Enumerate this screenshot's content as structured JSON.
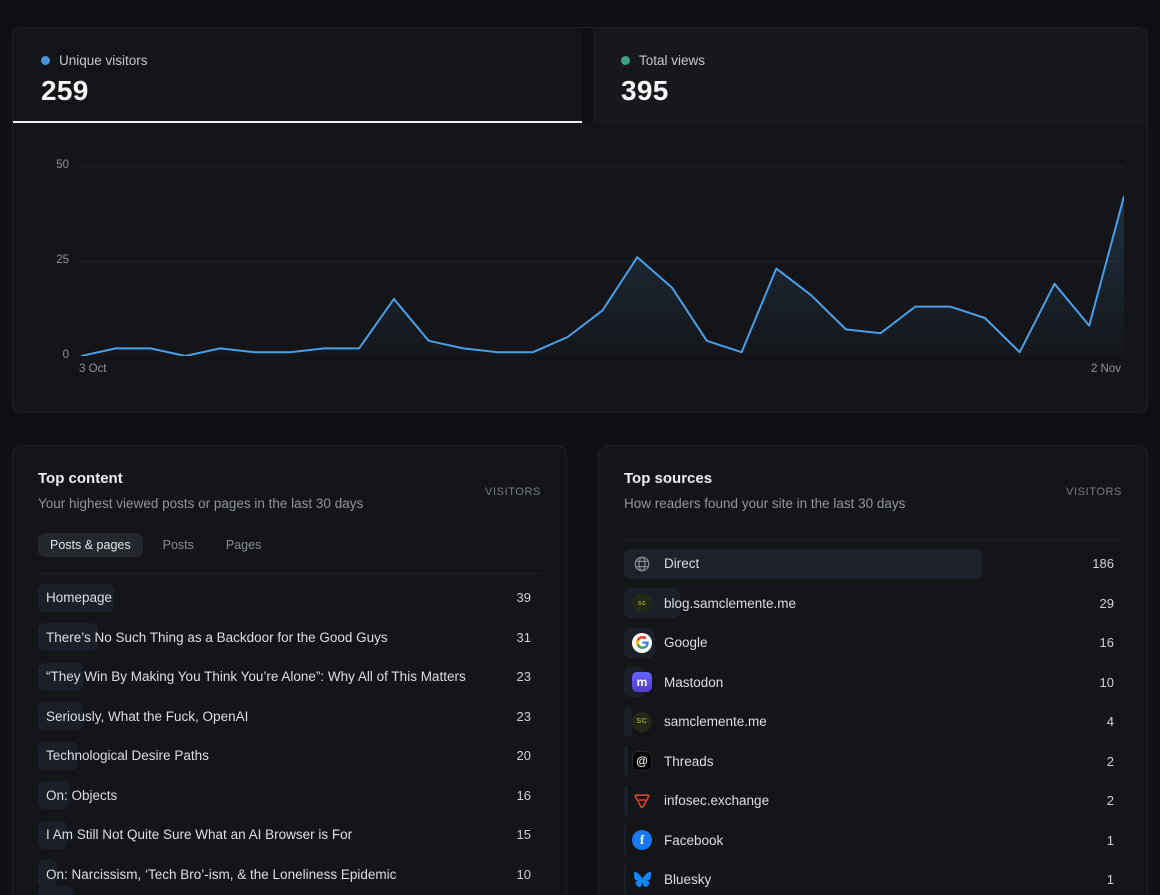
{
  "accent_colors": {
    "unique_dot": "#4a94dd",
    "views_dot": "#3da287",
    "chart_line": "#4b9fe7",
    "bar_fill": "#1a1f29",
    "direct_bar_fill": "#1c212c"
  },
  "kpis": {
    "unique_visitors": {
      "label": "Unique visitors",
      "value": "259",
      "active": true
    },
    "total_views": {
      "label": "Total views",
      "value": "395",
      "active": false
    }
  },
  "chart_data": {
    "type": "area",
    "series_name": "Unique visitors",
    "x": [
      "3 Oct",
      "4 Oct",
      "5 Oct",
      "6 Oct",
      "7 Oct",
      "8 Oct",
      "9 Oct",
      "10 Oct",
      "11 Oct",
      "12 Oct",
      "13 Oct",
      "14 Oct",
      "15 Oct",
      "16 Oct",
      "17 Oct",
      "18 Oct",
      "19 Oct",
      "20 Oct",
      "21 Oct",
      "22 Oct",
      "23 Oct",
      "24 Oct",
      "25 Oct",
      "26 Oct",
      "27 Oct",
      "28 Oct",
      "29 Oct",
      "30 Oct",
      "31 Oct",
      "1 Nov",
      "2 Nov"
    ],
    "values": [
      0,
      2,
      2,
      0,
      2,
      1,
      1,
      2,
      2,
      15,
      4,
      2,
      1,
      1,
      5,
      12,
      26,
      18,
      4,
      1,
      23,
      16,
      7,
      6,
      13,
      13,
      10,
      1,
      19,
      8,
      42
    ],
    "y_ticks": [
      0,
      25,
      50
    ],
    "ylim": [
      0,
      50
    ],
    "x_tick_labels": [
      "3 Oct",
      "2 Nov"
    ],
    "grid": "horizontal-only",
    "legend": "none"
  },
  "bar_scale_total": 259,
  "top_content": {
    "title": "Top content",
    "subtitle": "Your highest viewed posts or pages in the last 30 days",
    "column_header": "VISITORS",
    "tabs": [
      {
        "label": "Posts & pages",
        "active": true
      },
      {
        "label": "Posts",
        "active": false
      },
      {
        "label": "Pages",
        "active": false
      }
    ],
    "items": [
      {
        "label": "Homepage",
        "visitors": 39
      },
      {
        "label": "There’s No Such Thing as a Backdoor for the Good Guys",
        "visitors": 31
      },
      {
        "label": "“They Win By Making You Think You’re Alone”: Why All of This Matters",
        "visitors": 23
      },
      {
        "label": "Seriously, What the Fuck, OpenAI",
        "visitors": 23
      },
      {
        "label": "Technological Desire Paths",
        "visitors": 20
      },
      {
        "label": "On: Objects",
        "visitors": 16
      },
      {
        "label": "I Am Still Not Quite Sure What an AI Browser is For",
        "visitors": 15
      },
      {
        "label": "On: Narcissism, ‘Tech Bro’-ism, & the Loneliness Epidemic",
        "visitors": 10
      }
    ],
    "partial_row_bar_visible": true
  },
  "top_sources": {
    "title": "Top sources",
    "subtitle": "How readers found your site in the last 30 days",
    "column_header": "VISITORS",
    "items": [
      {
        "icon": "globe-icon",
        "label": "Direct",
        "visitors": 186
      },
      {
        "icon": "blog-samclemente-favicon",
        "label": "blog.samclemente.me",
        "visitors": 29
      },
      {
        "icon": "google-icon",
        "label": "Google",
        "visitors": 16
      },
      {
        "icon": "mastodon-icon",
        "label": "Mastodon",
        "visitors": 10
      },
      {
        "icon": "samclemente-favicon",
        "label": "samclemente.me",
        "visitors": 4
      },
      {
        "icon": "threads-icon",
        "label": "Threads",
        "visitors": 2
      },
      {
        "icon": "infosec-exchange-icon",
        "label": "infosec.exchange",
        "visitors": 2
      },
      {
        "icon": "facebook-icon",
        "label": "Facebook",
        "visitors": 1
      },
      {
        "icon": "bluesky-icon",
        "label": "Bluesky",
        "visitors": 1
      }
    ]
  }
}
